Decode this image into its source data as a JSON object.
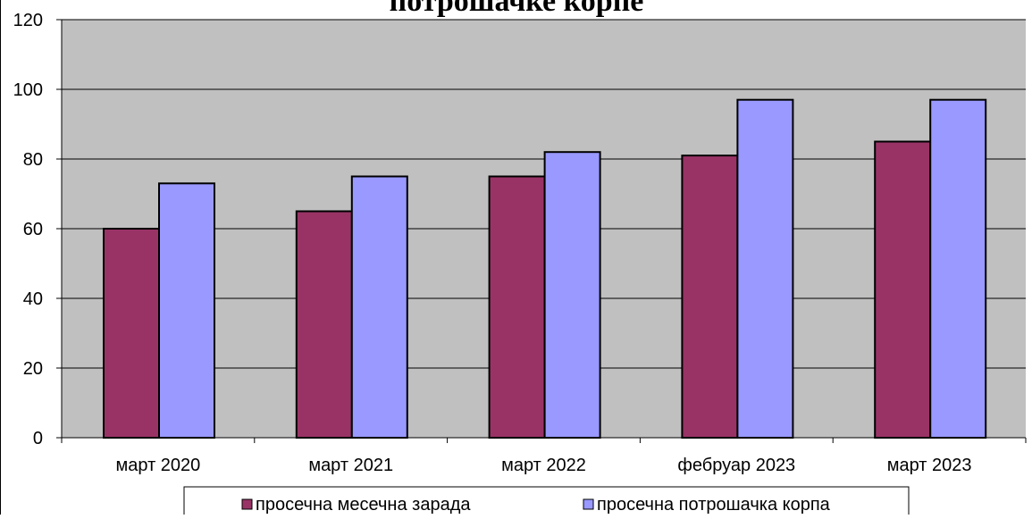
{
  "chart_data": {
    "type": "bar",
    "title": "потрошачке корпе",
    "categories": [
      "март 2020",
      "март 2021",
      "март 2022",
      "фебруар 2023",
      "март 2023"
    ],
    "series": [
      {
        "name": "просечна месечна зарада",
        "values": [
          60,
          65,
          75,
          81,
          85
        ],
        "color": "#993366"
      },
      {
        "name": "просечна потрошачка корпа",
        "values": [
          73,
          75,
          82,
          97,
          97
        ],
        "color": "#9999FF"
      }
    ],
    "ylim": [
      0,
      120
    ],
    "yticks": [
      0,
      20,
      40,
      60,
      80,
      100,
      120
    ],
    "grid": true,
    "plot_background": "#C0C0C0",
    "legend_position": "bottom"
  }
}
